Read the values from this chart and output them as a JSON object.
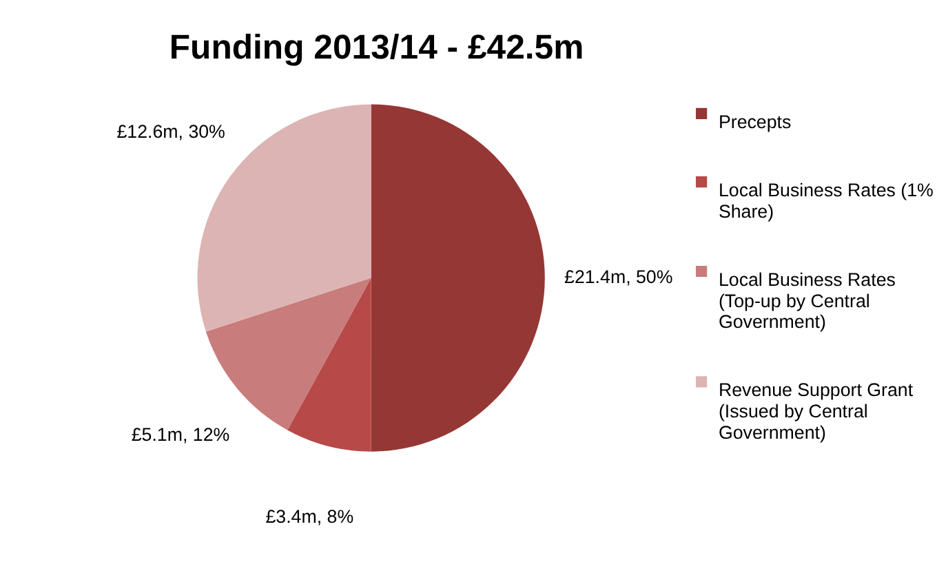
{
  "chart_data": {
    "type": "pie",
    "title": "Funding 2013/14 - £42.5m",
    "categories": [
      "Precepts",
      "Local Business Rates (1% Share)",
      "Local Business Rates (Top-up by Central Government)",
      "Revenue Support Grant (Issued by Central Government)"
    ],
    "values": [
      50,
      8,
      12,
      30
    ],
    "value_labels": [
      "£21.4m, 50%",
      "£3.4m, 8%",
      "£5.1m, 12%",
      "£12.6m, 30%"
    ],
    "colors": [
      "#953735",
      "#b74a48",
      "#c87c7b",
      "#dcb4b3"
    ],
    "legend": "right"
  }
}
